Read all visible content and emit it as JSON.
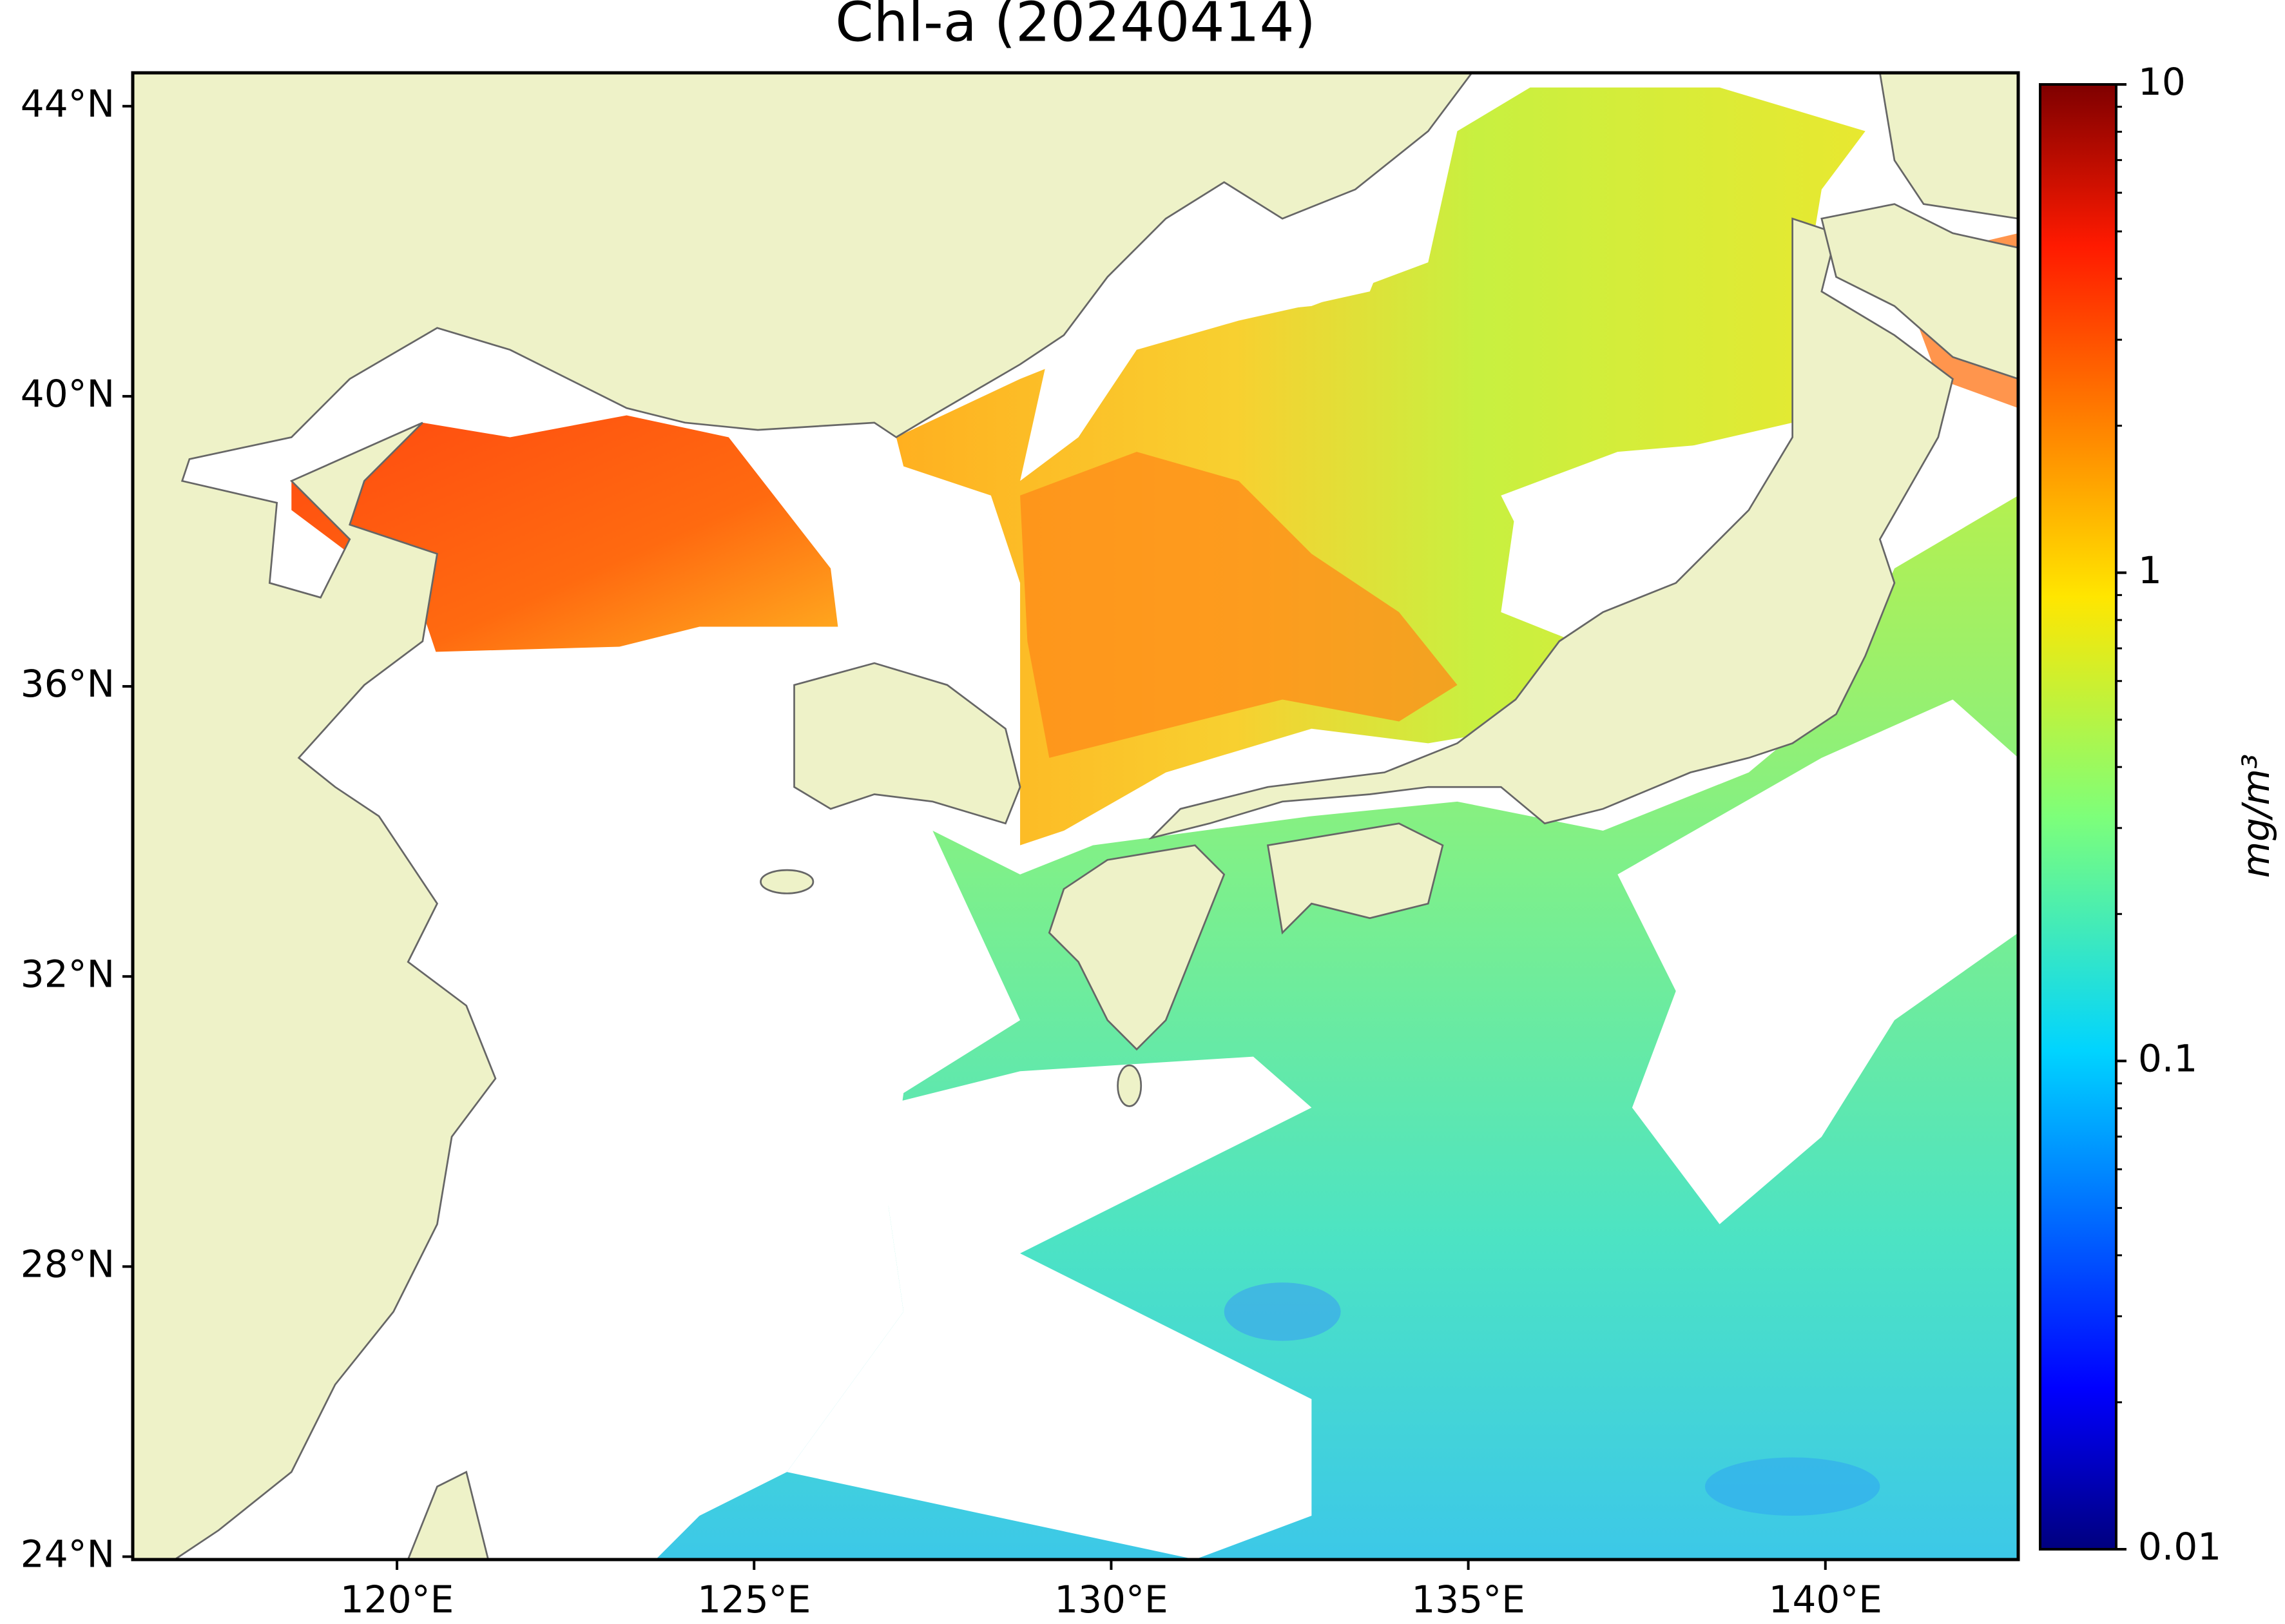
{
  "chart_data": {
    "type": "map",
    "title": "Chl-a (20240414)",
    "xlim": [
      116.3,
      142.7
    ],
    "ylim": [
      23.96,
      44.46
    ],
    "xticks": [
      {
        "value": 120,
        "label": "120°E"
      },
      {
        "value": 125,
        "label": "125°E"
      },
      {
        "value": 130,
        "label": "130°E"
      },
      {
        "value": 135,
        "label": "135°E"
      },
      {
        "value": 140,
        "label": "140°E"
      }
    ],
    "yticks": [
      {
        "value": 24,
        "label": "24°N"
      },
      {
        "value": 28,
        "label": "28°N"
      },
      {
        "value": 32,
        "label": "32°N"
      },
      {
        "value": 36,
        "label": "36°N"
      },
      {
        "value": 40,
        "label": "40°N"
      },
      {
        "value": 44,
        "label": "44°N"
      }
    ],
    "colorbar": {
      "label": "mg/m³",
      "scale": "log",
      "colormap": "jet",
      "lim": [
        0.01,
        10
      ],
      "ticks": [
        10,
        1,
        0.1,
        0.01
      ]
    }
  }
}
